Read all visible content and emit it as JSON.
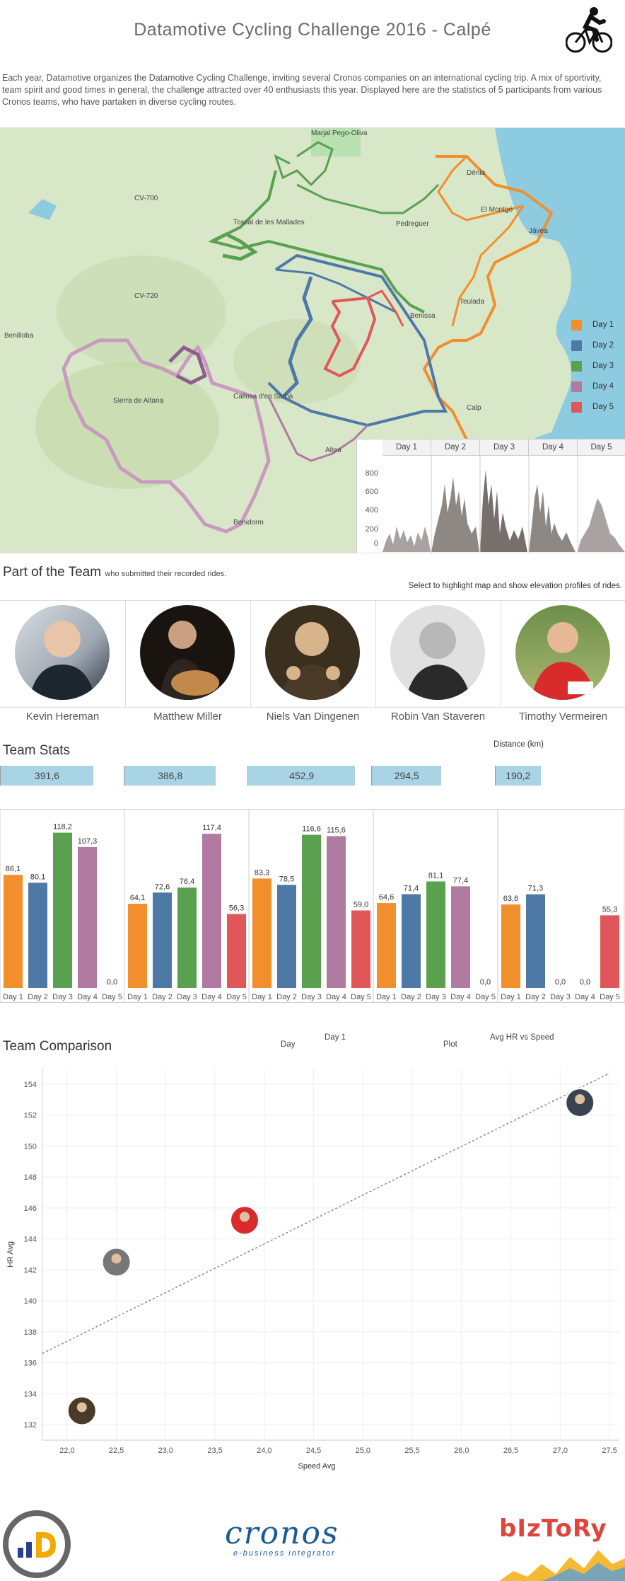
{
  "header": {
    "title": "Datamotive Cycling Challenge 2016 - Calpé",
    "logo_icon": "cyclist-icon"
  },
  "intro": "Each year, Datamotive organizes the Datamotive Cycling Challenge, inviting several Cronos companies on an international cycling trip. A mix of sportivity, team spirit and good times in general, the challenge attracted over 40 enthusiasts this year. Displayed here are the statistics of 5 participants from various Cronos teams, who have partaken in diverse cycling routes.",
  "map": {
    "towns": [
      "Marjal Pego-Oliva",
      "Dénia",
      "El Montgó",
      "Jávea",
      "Pedreguer",
      "Benissa",
      "Teulada",
      "Benilloba",
      "Sierra de Aitana",
      "Callosa d'en Sarrià",
      "Altea",
      "Benidorm",
      "Calp",
      "Tossal de les Mallades",
      "CV-700",
      "CV-720"
    ],
    "legend": [
      {
        "label": "Day 1",
        "color": "#f28e2b"
      },
      {
        "label": "Day 2",
        "color": "#4e79a7"
      },
      {
        "label": "Day 3",
        "color": "#59a14f"
      },
      {
        "label": "Day 4",
        "color": "#b07aa1"
      },
      {
        "label": "Day 5",
        "color": "#e15759"
      }
    ]
  },
  "elevation": {
    "days": [
      "Day 1",
      "Day 2",
      "Day 3",
      "Day 4",
      "Day 5"
    ],
    "ticks": [
      "800",
      "600",
      "400",
      "200",
      "0"
    ]
  },
  "team": {
    "heading": "Part of the Team",
    "subheading": "who submitted their recorded rides.",
    "select_note": "Select to highlight map and show elevation profiles of rides.",
    "members": [
      {
        "name": "Kevin Hereman",
        "avatar_icon": "avatar-kevin"
      },
      {
        "name": "Matthew Miller",
        "avatar_icon": "avatar-matthew"
      },
      {
        "name": "Niels Van Dingenen",
        "avatar_icon": "avatar-niels"
      },
      {
        "name": "Robin Van Staveren",
        "avatar_icon": "avatar-robin"
      },
      {
        "name": "Timothy Vermeiren",
        "avatar_icon": "avatar-timothy"
      }
    ]
  },
  "stats": {
    "heading": "Team Stats",
    "distance_label": "Distance (km)",
    "distances": [
      "391,6",
      "386,8",
      "452,9",
      "294,5",
      "190,2"
    ],
    "distance_values": [
      391.6,
      386.8,
      452.9,
      294.5,
      190.2
    ]
  },
  "chart_data": [
    {
      "type": "bar",
      "title": "",
      "categories": [
        "Day 1",
        "Day 2",
        "Day 3",
        "Day 4",
        "Day 5"
      ],
      "colors": [
        "#f28e2b",
        "#4e79a7",
        "#59a14f",
        "#b07aa1",
        "#e15759"
      ],
      "series": [
        {
          "name": "Kevin Hereman",
          "values": [
            86.1,
            80.1,
            118.2,
            107.3,
            0.0
          ],
          "labels": [
            "86,1",
            "80,1",
            "118,2",
            "107,3",
            "0,0"
          ]
        },
        {
          "name": "Matthew Miller",
          "values": [
            64.1,
            72.6,
            76.4,
            117.4,
            56.3
          ],
          "labels": [
            "64,1",
            "72,6",
            "76,4",
            "117,4",
            "56,3"
          ]
        },
        {
          "name": "Niels Van Dingenen",
          "values": [
            83.3,
            78.5,
            116.6,
            115.6,
            59.0
          ],
          "labels": [
            "83,3",
            "78,5",
            "116,6",
            "115,6",
            "59,0"
          ]
        },
        {
          "name": "Robin Van Staveren",
          "values": [
            64.6,
            71.4,
            81.1,
            77.4,
            0.0
          ],
          "labels": [
            "64,6",
            "71,4",
            "81,1",
            "77,4",
            "0,0"
          ]
        },
        {
          "name": "Timothy Vermeiren",
          "values": [
            63.6,
            71.3,
            0.0,
            0.0,
            55.3
          ],
          "labels": [
            "63,6",
            "71,3",
            "0,0",
            "0,0",
            "55,3"
          ]
        }
      ],
      "ylim": [
        0,
        125
      ]
    },
    {
      "type": "scatter",
      "title": "",
      "xlabel": "Speed Avg",
      "ylabel": "HR Avg",
      "xlim": [
        21.75,
        27.6
      ],
      "ylim": [
        131,
        155
      ],
      "xticks": [
        "22,0",
        "22,5",
        "23,0",
        "23,5",
        "24,0",
        "24,5",
        "25,0",
        "25,5",
        "26,0",
        "26,5",
        "27,0",
        "27,5"
      ],
      "xtick_values": [
        22.0,
        22.5,
        23.0,
        23.5,
        24.0,
        24.5,
        25.0,
        25.5,
        26.0,
        26.5,
        27.0,
        27.5
      ],
      "yticks": [
        132,
        134,
        136,
        138,
        140,
        142,
        144,
        146,
        148,
        150,
        152,
        154
      ],
      "points": [
        {
          "name": "Niels Van Dingenen",
          "x": 22.15,
          "y": 132.9
        },
        {
          "name": "Robin Van Staveren",
          "x": 22.5,
          "y": 142.5
        },
        {
          "name": "Timothy Vermeiren",
          "x": 23.8,
          "y": 145.2
        },
        {
          "name": "Kevin Hereman",
          "x": 27.2,
          "y": 152.8
        }
      ],
      "trend": {
        "x0": 21.75,
        "y0": 136.6,
        "x1": 27.5,
        "y1": 154.7
      },
      "grid": true
    }
  ],
  "comparison": {
    "heading": "Team Comparison",
    "day_label": "Day",
    "day_value": "Day 1",
    "plot_label": "Plot",
    "plot_value": "Avg HR vs Speed"
  },
  "footer": {
    "cronos_name": "cronos",
    "cronos_tagline": "e-business integrator",
    "biztory_name": "bIzToRy"
  }
}
